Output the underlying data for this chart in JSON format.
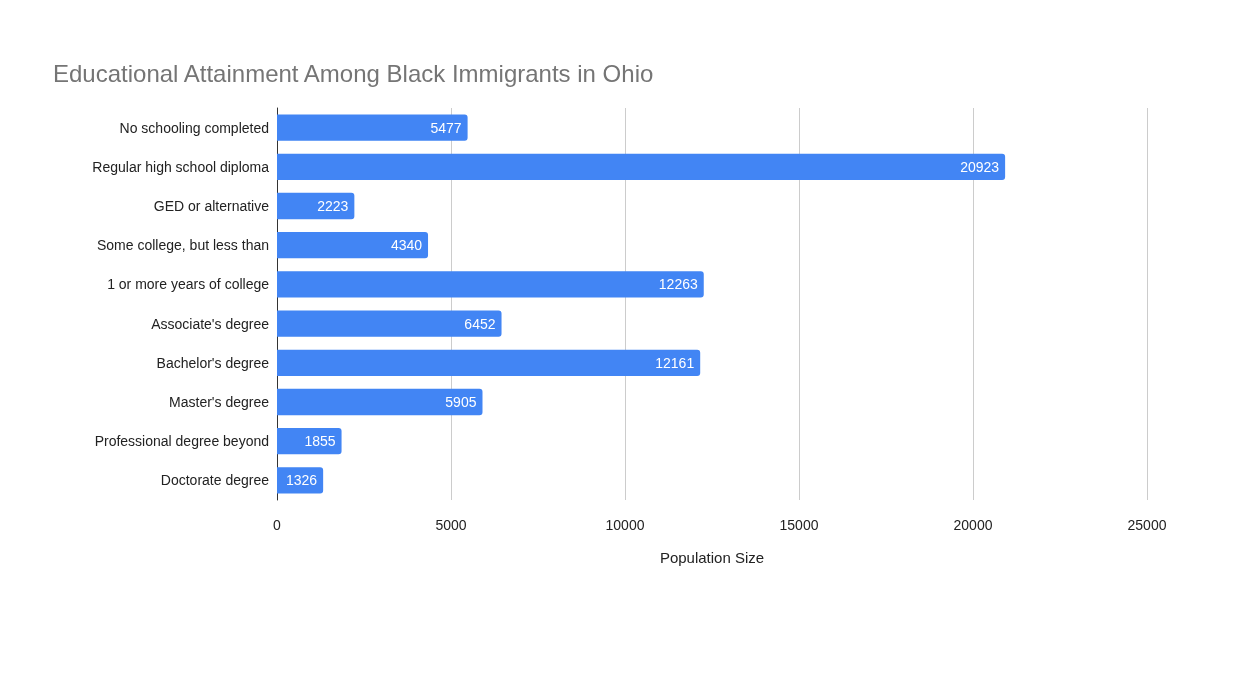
{
  "chart_data": {
    "type": "bar",
    "orientation": "horizontal",
    "title": "Educational Attainment Among Black Immigrants in Ohio",
    "xlabel": "Population Size",
    "categories": [
      "No schooling completed",
      "Regular high school diploma",
      "GED or alternative",
      "Some college, but less than",
      "1 or more years of college",
      "Associate's degree",
      "Bachelor's degree",
      "Master's degree",
      "Professional degree beyond",
      "Doctorate degree"
    ],
    "values": [
      5477,
      20923,
      2223,
      4340,
      12263,
      6452,
      12161,
      5905,
      1855,
      1326
    ],
    "color": "#4285f4",
    "data_labels": true,
    "xlim": [
      0,
      25000
    ],
    "xticks": [
      0,
      5000,
      10000,
      15000,
      20000,
      25000
    ],
    "grid": "x"
  }
}
